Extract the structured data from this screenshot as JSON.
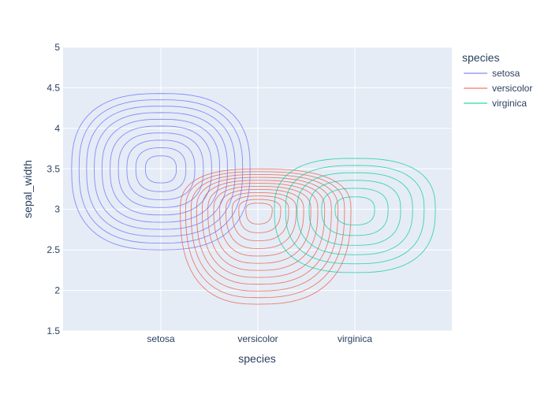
{
  "chart_data": {
    "type": "contour",
    "subtype": "2d-density-contour",
    "title": "",
    "xlabel": "species",
    "ylabel": "sepal_width",
    "x_categories": [
      "setosa",
      "versicolor",
      "virginica"
    ],
    "ylim": [
      1.5,
      5
    ],
    "y_ticks": [
      1.5,
      2,
      2.5,
      3,
      3.5,
      4,
      4.5,
      5
    ],
    "y_tick_labels": [
      "1.5",
      "2",
      "2.5",
      "3",
      "3.5",
      "4",
      "4.5",
      "5"
    ],
    "grid": true,
    "legend": {
      "title": "species",
      "placement": "right"
    },
    "series": [
      {
        "name": "setosa",
        "color": "#636efa",
        "center": {
          "x": "setosa",
          "y": 3.5
        },
        "outer_extent": {
          "x": [
            -0.92,
            0.92
          ],
          "y": [
            2.5,
            4.43
          ]
        },
        "contour_levels": 10
      },
      {
        "name": "versicolor",
        "color": "#ef553b",
        "center": {
          "x": "versicolor",
          "y": 3.0
        },
        "outer_extent": {
          "x": [
            -0.8,
            0.96
          ],
          "y": [
            1.83,
            3.5
          ]
        },
        "contour_levels": 12
      },
      {
        "name": "virginica",
        "color": "#00cc96",
        "center": {
          "x": "virginica",
          "y": 3.0
        },
        "outer_extent": {
          "x": [
            -0.83,
            0.83
          ],
          "y": [
            2.22,
            3.63
          ]
        },
        "contour_levels": 6
      }
    ]
  }
}
